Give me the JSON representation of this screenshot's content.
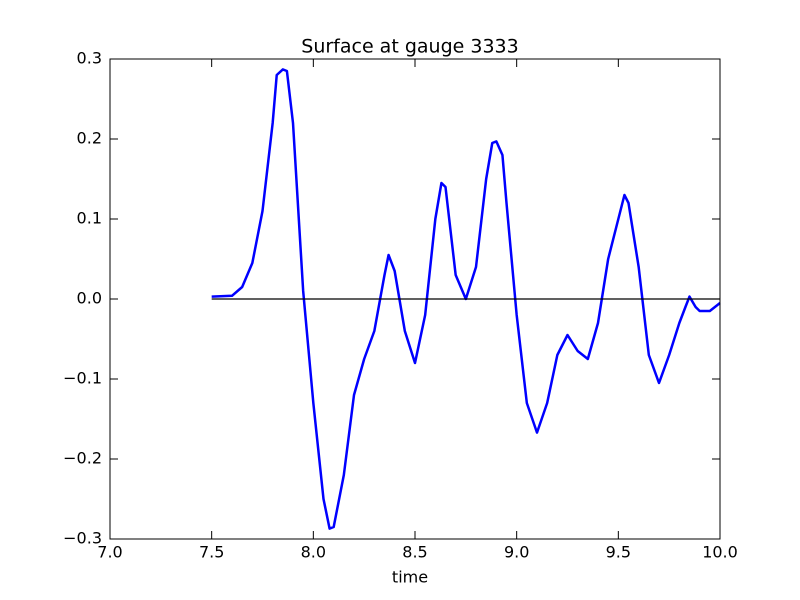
{
  "chart_data": {
    "type": "line",
    "title": "Surface at gauge 3333",
    "x_label": "time",
    "xlim": [
      7.0,
      10.0
    ],
    "xticks": [
      {
        "value": 7.0,
        "label": "7.0"
      },
      {
        "value": 7.5,
        "label": "7.5"
      },
      {
        "value": 8.0,
        "label": "8.0"
      },
      {
        "value": 8.5,
        "label": "8.5"
      },
      {
        "value": 9.0,
        "label": "9.0"
      },
      {
        "value": 9.5,
        "label": "9.5"
      },
      {
        "value": 10.0,
        "label": "10.0"
      }
    ],
    "ylim": [
      -0.3,
      0.3
    ],
    "yticks": [
      {
        "value": -0.3,
        "label": "−0.3"
      },
      {
        "value": -0.2,
        "label": "−0.2"
      },
      {
        "value": -0.1,
        "label": "−0.1"
      },
      {
        "value": 0.0,
        "label": "0.0"
      },
      {
        "value": 0.1,
        "label": "0.1"
      },
      {
        "value": 0.2,
        "label": "0.2"
      },
      {
        "value": 0.3,
        "label": "0.3"
      }
    ],
    "series": [
      {
        "color": "#0000ff",
        "x": [
          7.5,
          7.6,
          7.65,
          7.7,
          7.75,
          7.8,
          7.82,
          7.85,
          7.87,
          7.9,
          7.95,
          8.0,
          8.05,
          8.08,
          8.1,
          8.15,
          8.2,
          8.25,
          8.3,
          8.35,
          8.37,
          8.4,
          8.45,
          8.5,
          8.55,
          8.6,
          8.63,
          8.65,
          8.7,
          8.75,
          8.8,
          8.85,
          8.88,
          8.9,
          8.93,
          8.95,
          9.0,
          9.05,
          9.1,
          9.15,
          9.2,
          9.25,
          9.3,
          9.35,
          9.4,
          9.45,
          9.5,
          9.53,
          9.55,
          9.6,
          9.65,
          9.7,
          9.75,
          9.8,
          9.83,
          9.85,
          9.88,
          9.9,
          9.95,
          10.0
        ],
        "values": [
          0.003,
          0.004,
          0.015,
          0.045,
          0.11,
          0.22,
          0.28,
          0.287,
          0.285,
          0.22,
          0.01,
          -0.13,
          -0.25,
          -0.287,
          -0.285,
          -0.22,
          -0.12,
          -0.075,
          -0.04,
          0.03,
          0.055,
          0.035,
          -0.04,
          -0.08,
          -0.02,
          0.1,
          0.145,
          0.14,
          0.03,
          0.0,
          0.04,
          0.15,
          0.195,
          0.197,
          0.18,
          0.12,
          -0.02,
          -0.13,
          -0.167,
          -0.13,
          -0.07,
          -0.045,
          -0.065,
          -0.075,
          -0.03,
          0.05,
          0.1,
          0.13,
          0.12,
          0.04,
          -0.07,
          -0.105,
          -0.07,
          -0.03,
          -0.01,
          0.003,
          -0.01,
          -0.015,
          -0.015,
          -0.005
        ]
      },
      {
        "color": "#000000",
        "x": [
          7.5,
          10.0
        ],
        "values": [
          0.0,
          0.0
        ]
      }
    ]
  }
}
